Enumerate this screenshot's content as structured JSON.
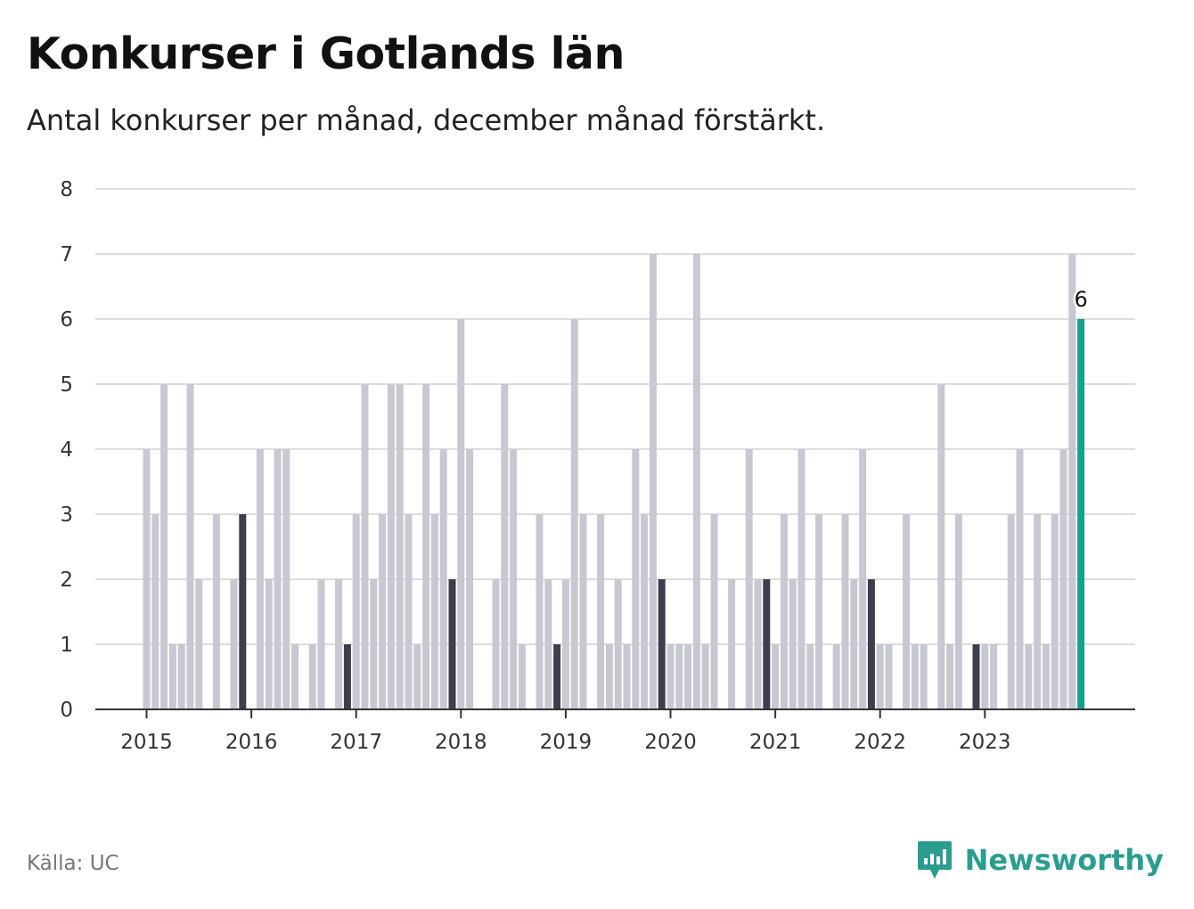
{
  "chart_data": {
    "type": "bar",
    "title": "Konkurser i Gotlands län",
    "subtitle": "Antal konkurser per månad, december månad förstärkt.",
    "start": "2015-01",
    "values": [
      4,
      3,
      5,
      1,
      1,
      5,
      2,
      0,
      3,
      0,
      2,
      3,
      0,
      4,
      2,
      4,
      4,
      1,
      0,
      1,
      2,
      0,
      2,
      1,
      3,
      5,
      2,
      3,
      5,
      5,
      3,
      1,
      5,
      3,
      4,
      2,
      6,
      4,
      0,
      0,
      2,
      5,
      4,
      1,
      0,
      3,
      2,
      1,
      2,
      6,
      3,
      0,
      3,
      1,
      2,
      1,
      4,
      3,
      7,
      2,
      1,
      1,
      1,
      7,
      1,
      3,
      0,
      2,
      0,
      4,
      2,
      2,
      1,
      3,
      2,
      4,
      1,
      3,
      0,
      1,
      3,
      2,
      4,
      2,
      1,
      1,
      0,
      3,
      1,
      1,
      0,
      5,
      1,
      3,
      0,
      1,
      1,
      1,
      0,
      3,
      4,
      1,
      3,
      1,
      3,
      4,
      7,
      6
    ],
    "highlight_index": 107,
    "highlight_label": "6",
    "x_tick_labels": [
      "2015",
      "2016",
      "2017",
      "2018",
      "2019",
      "2020",
      "2021",
      "2022",
      "2023"
    ],
    "y_ticks": [
      0,
      1,
      2,
      3,
      4,
      5,
      6,
      7,
      8
    ],
    "ylim": [
      0,
      8
    ],
    "grid": true,
    "colors": {
      "bar": "#c8c8d3",
      "december": "#3f3e4e",
      "highlight": "#18a08f",
      "grid": "#dddddd",
      "axis": "#333333"
    }
  },
  "source": "Källa: UC",
  "logo": {
    "text": "Newsworthy",
    "color": "#2a9d8f",
    "icon": "bar-chart-speech-bubble-icon"
  }
}
